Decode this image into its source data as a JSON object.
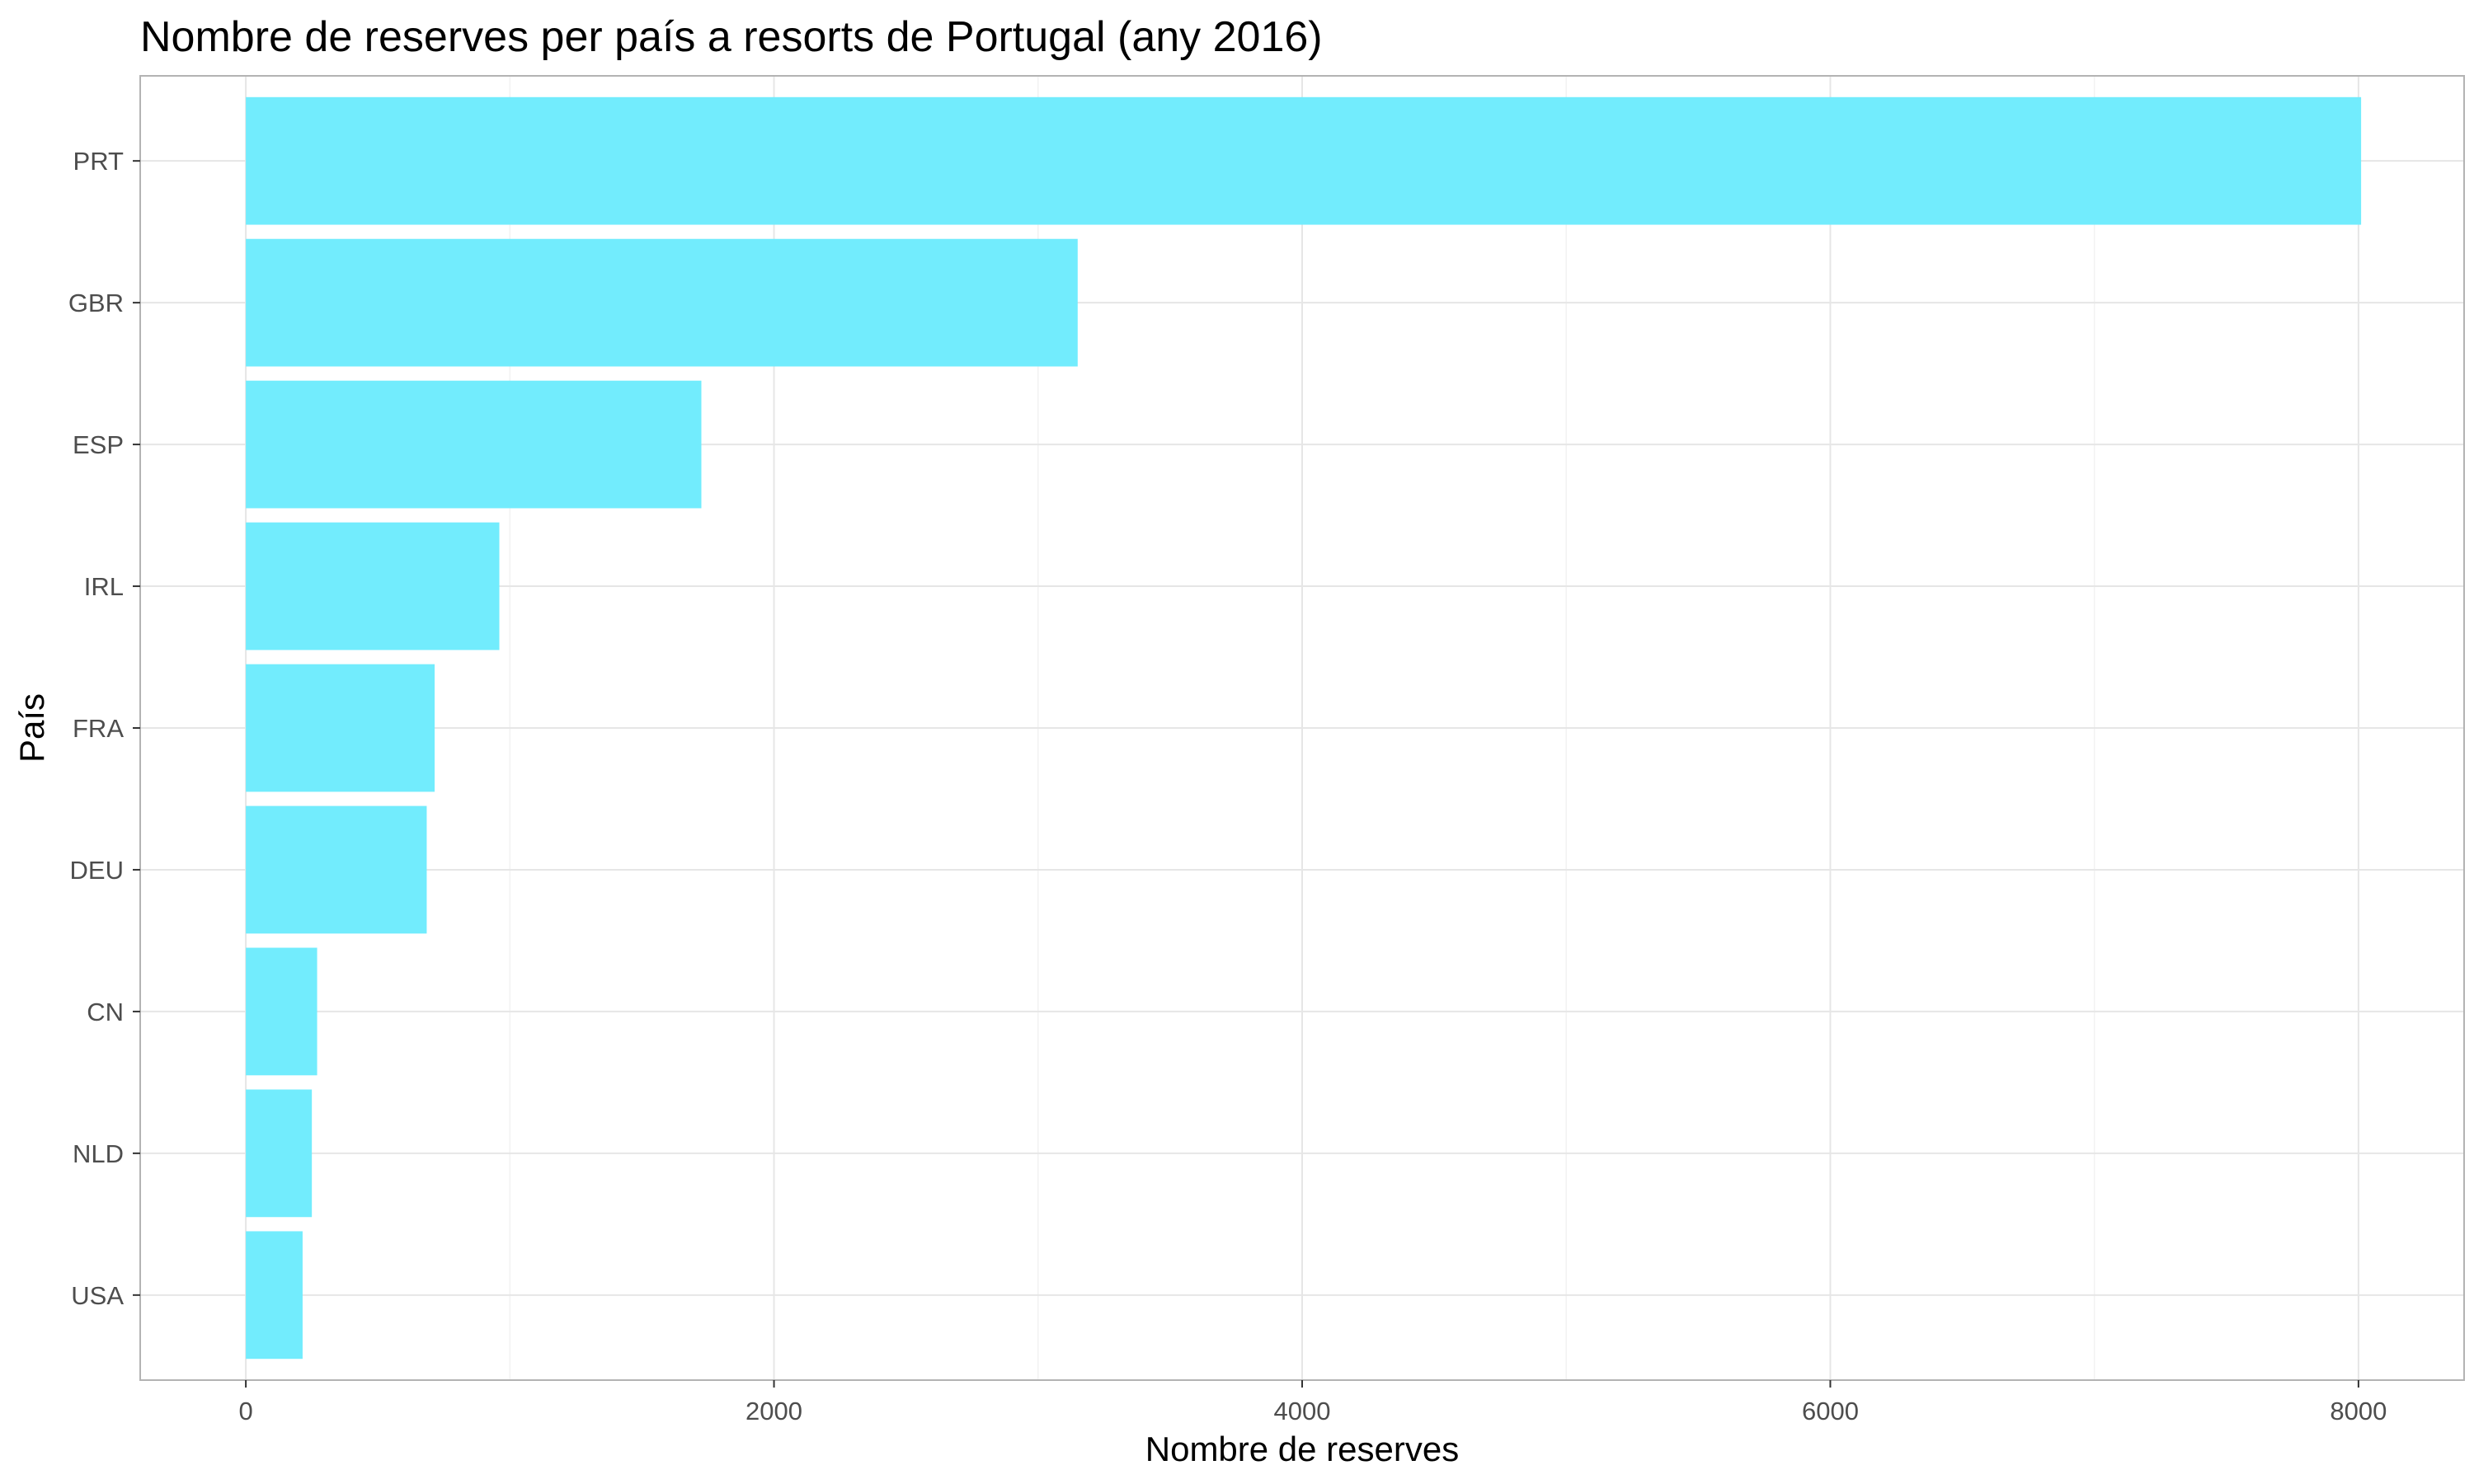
{
  "chart_data": {
    "type": "bar",
    "orientation": "horizontal",
    "title": "Nombre de reserves per país a resorts de Portugal (any 2016)",
    "xlabel": "Nombre de reserves",
    "ylabel": "País",
    "categories": [
      "PRT",
      "GBR",
      "ESP",
      "IRL",
      "FRA",
      "DEU",
      "CN",
      "NLD",
      "USA"
    ],
    "values": [
      8010,
      3150,
      1725,
      960,
      715,
      685,
      270,
      250,
      215
    ],
    "xlim": [
      -400,
      8400
    ],
    "xticks": [
      0,
      2000,
      4000,
      6000,
      8000
    ],
    "xtick_labels": [
      "0",
      "2000",
      "4000",
      "6000",
      "8000"
    ],
    "grid": true,
    "bar_color": "#72ECFD",
    "panel_border_color": "#b3b3b3",
    "grid_color": "#e6e6e6"
  }
}
